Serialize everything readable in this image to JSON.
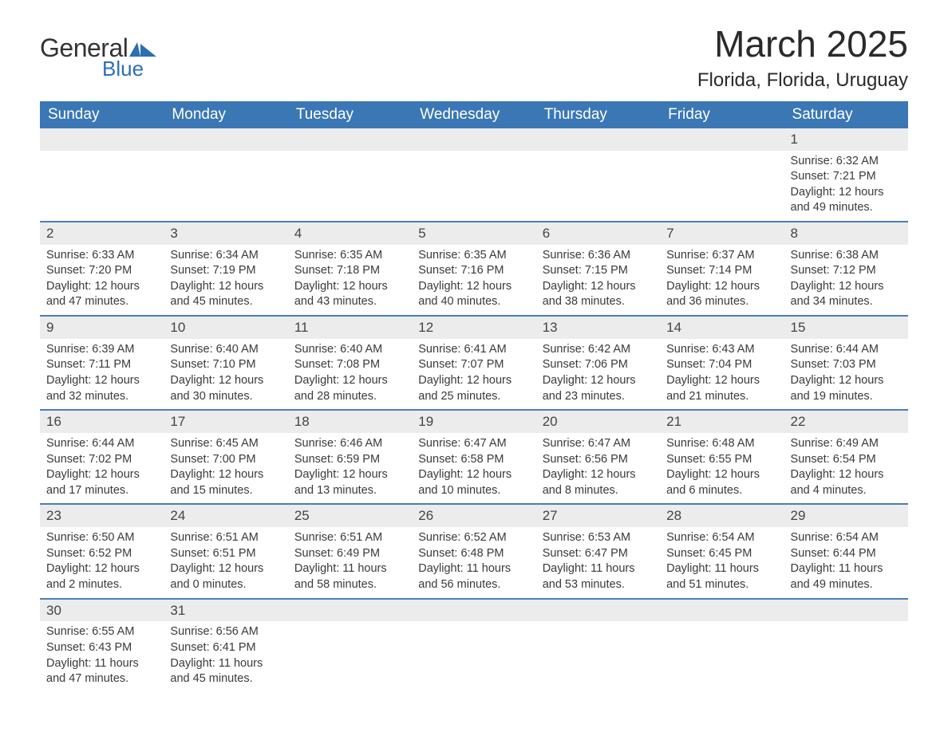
{
  "brand": {
    "word1": "General",
    "word2": "Blue",
    "flag_color": "#2d6fb3"
  },
  "title": "March 2025",
  "location": "Florida, Florida, Uruguay",
  "colors": {
    "header_bg": "#3b77b4",
    "header_text": "#ffffff",
    "daynum_bg": "#ececec",
    "row_divider": "#4a7fb8",
    "text": "#3a3a3a"
  },
  "day_headers": [
    "Sunday",
    "Monday",
    "Tuesday",
    "Wednesday",
    "Thursday",
    "Friday",
    "Saturday"
  ],
  "weeks": [
    [
      null,
      null,
      null,
      null,
      null,
      null,
      {
        "n": "1",
        "sr": "Sunrise: 6:32 AM",
        "ss": "Sunset: 7:21 PM",
        "d1": "Daylight: 12 hours",
        "d2": "and 49 minutes."
      }
    ],
    [
      {
        "n": "2",
        "sr": "Sunrise: 6:33 AM",
        "ss": "Sunset: 7:20 PM",
        "d1": "Daylight: 12 hours",
        "d2": "and 47 minutes."
      },
      {
        "n": "3",
        "sr": "Sunrise: 6:34 AM",
        "ss": "Sunset: 7:19 PM",
        "d1": "Daylight: 12 hours",
        "d2": "and 45 minutes."
      },
      {
        "n": "4",
        "sr": "Sunrise: 6:35 AM",
        "ss": "Sunset: 7:18 PM",
        "d1": "Daylight: 12 hours",
        "d2": "and 43 minutes."
      },
      {
        "n": "5",
        "sr": "Sunrise: 6:35 AM",
        "ss": "Sunset: 7:16 PM",
        "d1": "Daylight: 12 hours",
        "d2": "and 40 minutes."
      },
      {
        "n": "6",
        "sr": "Sunrise: 6:36 AM",
        "ss": "Sunset: 7:15 PM",
        "d1": "Daylight: 12 hours",
        "d2": "and 38 minutes."
      },
      {
        "n": "7",
        "sr": "Sunrise: 6:37 AM",
        "ss": "Sunset: 7:14 PM",
        "d1": "Daylight: 12 hours",
        "d2": "and 36 minutes."
      },
      {
        "n": "8",
        "sr": "Sunrise: 6:38 AM",
        "ss": "Sunset: 7:12 PM",
        "d1": "Daylight: 12 hours",
        "d2": "and 34 minutes."
      }
    ],
    [
      {
        "n": "9",
        "sr": "Sunrise: 6:39 AM",
        "ss": "Sunset: 7:11 PM",
        "d1": "Daylight: 12 hours",
        "d2": "and 32 minutes."
      },
      {
        "n": "10",
        "sr": "Sunrise: 6:40 AM",
        "ss": "Sunset: 7:10 PM",
        "d1": "Daylight: 12 hours",
        "d2": "and 30 minutes."
      },
      {
        "n": "11",
        "sr": "Sunrise: 6:40 AM",
        "ss": "Sunset: 7:08 PM",
        "d1": "Daylight: 12 hours",
        "d2": "and 28 minutes."
      },
      {
        "n": "12",
        "sr": "Sunrise: 6:41 AM",
        "ss": "Sunset: 7:07 PM",
        "d1": "Daylight: 12 hours",
        "d2": "and 25 minutes."
      },
      {
        "n": "13",
        "sr": "Sunrise: 6:42 AM",
        "ss": "Sunset: 7:06 PM",
        "d1": "Daylight: 12 hours",
        "d2": "and 23 minutes."
      },
      {
        "n": "14",
        "sr": "Sunrise: 6:43 AM",
        "ss": "Sunset: 7:04 PM",
        "d1": "Daylight: 12 hours",
        "d2": "and 21 minutes."
      },
      {
        "n": "15",
        "sr": "Sunrise: 6:44 AM",
        "ss": "Sunset: 7:03 PM",
        "d1": "Daylight: 12 hours",
        "d2": "and 19 minutes."
      }
    ],
    [
      {
        "n": "16",
        "sr": "Sunrise: 6:44 AM",
        "ss": "Sunset: 7:02 PM",
        "d1": "Daylight: 12 hours",
        "d2": "and 17 minutes."
      },
      {
        "n": "17",
        "sr": "Sunrise: 6:45 AM",
        "ss": "Sunset: 7:00 PM",
        "d1": "Daylight: 12 hours",
        "d2": "and 15 minutes."
      },
      {
        "n": "18",
        "sr": "Sunrise: 6:46 AM",
        "ss": "Sunset: 6:59 PM",
        "d1": "Daylight: 12 hours",
        "d2": "and 13 minutes."
      },
      {
        "n": "19",
        "sr": "Sunrise: 6:47 AM",
        "ss": "Sunset: 6:58 PM",
        "d1": "Daylight: 12 hours",
        "d2": "and 10 minutes."
      },
      {
        "n": "20",
        "sr": "Sunrise: 6:47 AM",
        "ss": "Sunset: 6:56 PM",
        "d1": "Daylight: 12 hours",
        "d2": "and 8 minutes."
      },
      {
        "n": "21",
        "sr": "Sunrise: 6:48 AM",
        "ss": "Sunset: 6:55 PM",
        "d1": "Daylight: 12 hours",
        "d2": "and 6 minutes."
      },
      {
        "n": "22",
        "sr": "Sunrise: 6:49 AM",
        "ss": "Sunset: 6:54 PM",
        "d1": "Daylight: 12 hours",
        "d2": "and 4 minutes."
      }
    ],
    [
      {
        "n": "23",
        "sr": "Sunrise: 6:50 AM",
        "ss": "Sunset: 6:52 PM",
        "d1": "Daylight: 12 hours",
        "d2": "and 2 minutes."
      },
      {
        "n": "24",
        "sr": "Sunrise: 6:51 AM",
        "ss": "Sunset: 6:51 PM",
        "d1": "Daylight: 12 hours",
        "d2": "and 0 minutes."
      },
      {
        "n": "25",
        "sr": "Sunrise: 6:51 AM",
        "ss": "Sunset: 6:49 PM",
        "d1": "Daylight: 11 hours",
        "d2": "and 58 minutes."
      },
      {
        "n": "26",
        "sr": "Sunrise: 6:52 AM",
        "ss": "Sunset: 6:48 PM",
        "d1": "Daylight: 11 hours",
        "d2": "and 56 minutes."
      },
      {
        "n": "27",
        "sr": "Sunrise: 6:53 AM",
        "ss": "Sunset: 6:47 PM",
        "d1": "Daylight: 11 hours",
        "d2": "and 53 minutes."
      },
      {
        "n": "28",
        "sr": "Sunrise: 6:54 AM",
        "ss": "Sunset: 6:45 PM",
        "d1": "Daylight: 11 hours",
        "d2": "and 51 minutes."
      },
      {
        "n": "29",
        "sr": "Sunrise: 6:54 AM",
        "ss": "Sunset: 6:44 PM",
        "d1": "Daylight: 11 hours",
        "d2": "and 49 minutes."
      }
    ],
    [
      {
        "n": "30",
        "sr": "Sunrise: 6:55 AM",
        "ss": "Sunset: 6:43 PM",
        "d1": "Daylight: 11 hours",
        "d2": "and 47 minutes."
      },
      {
        "n": "31",
        "sr": "Sunrise: 6:56 AM",
        "ss": "Sunset: 6:41 PM",
        "d1": "Daylight: 11 hours",
        "d2": "and 45 minutes."
      },
      null,
      null,
      null,
      null,
      null
    ]
  ]
}
